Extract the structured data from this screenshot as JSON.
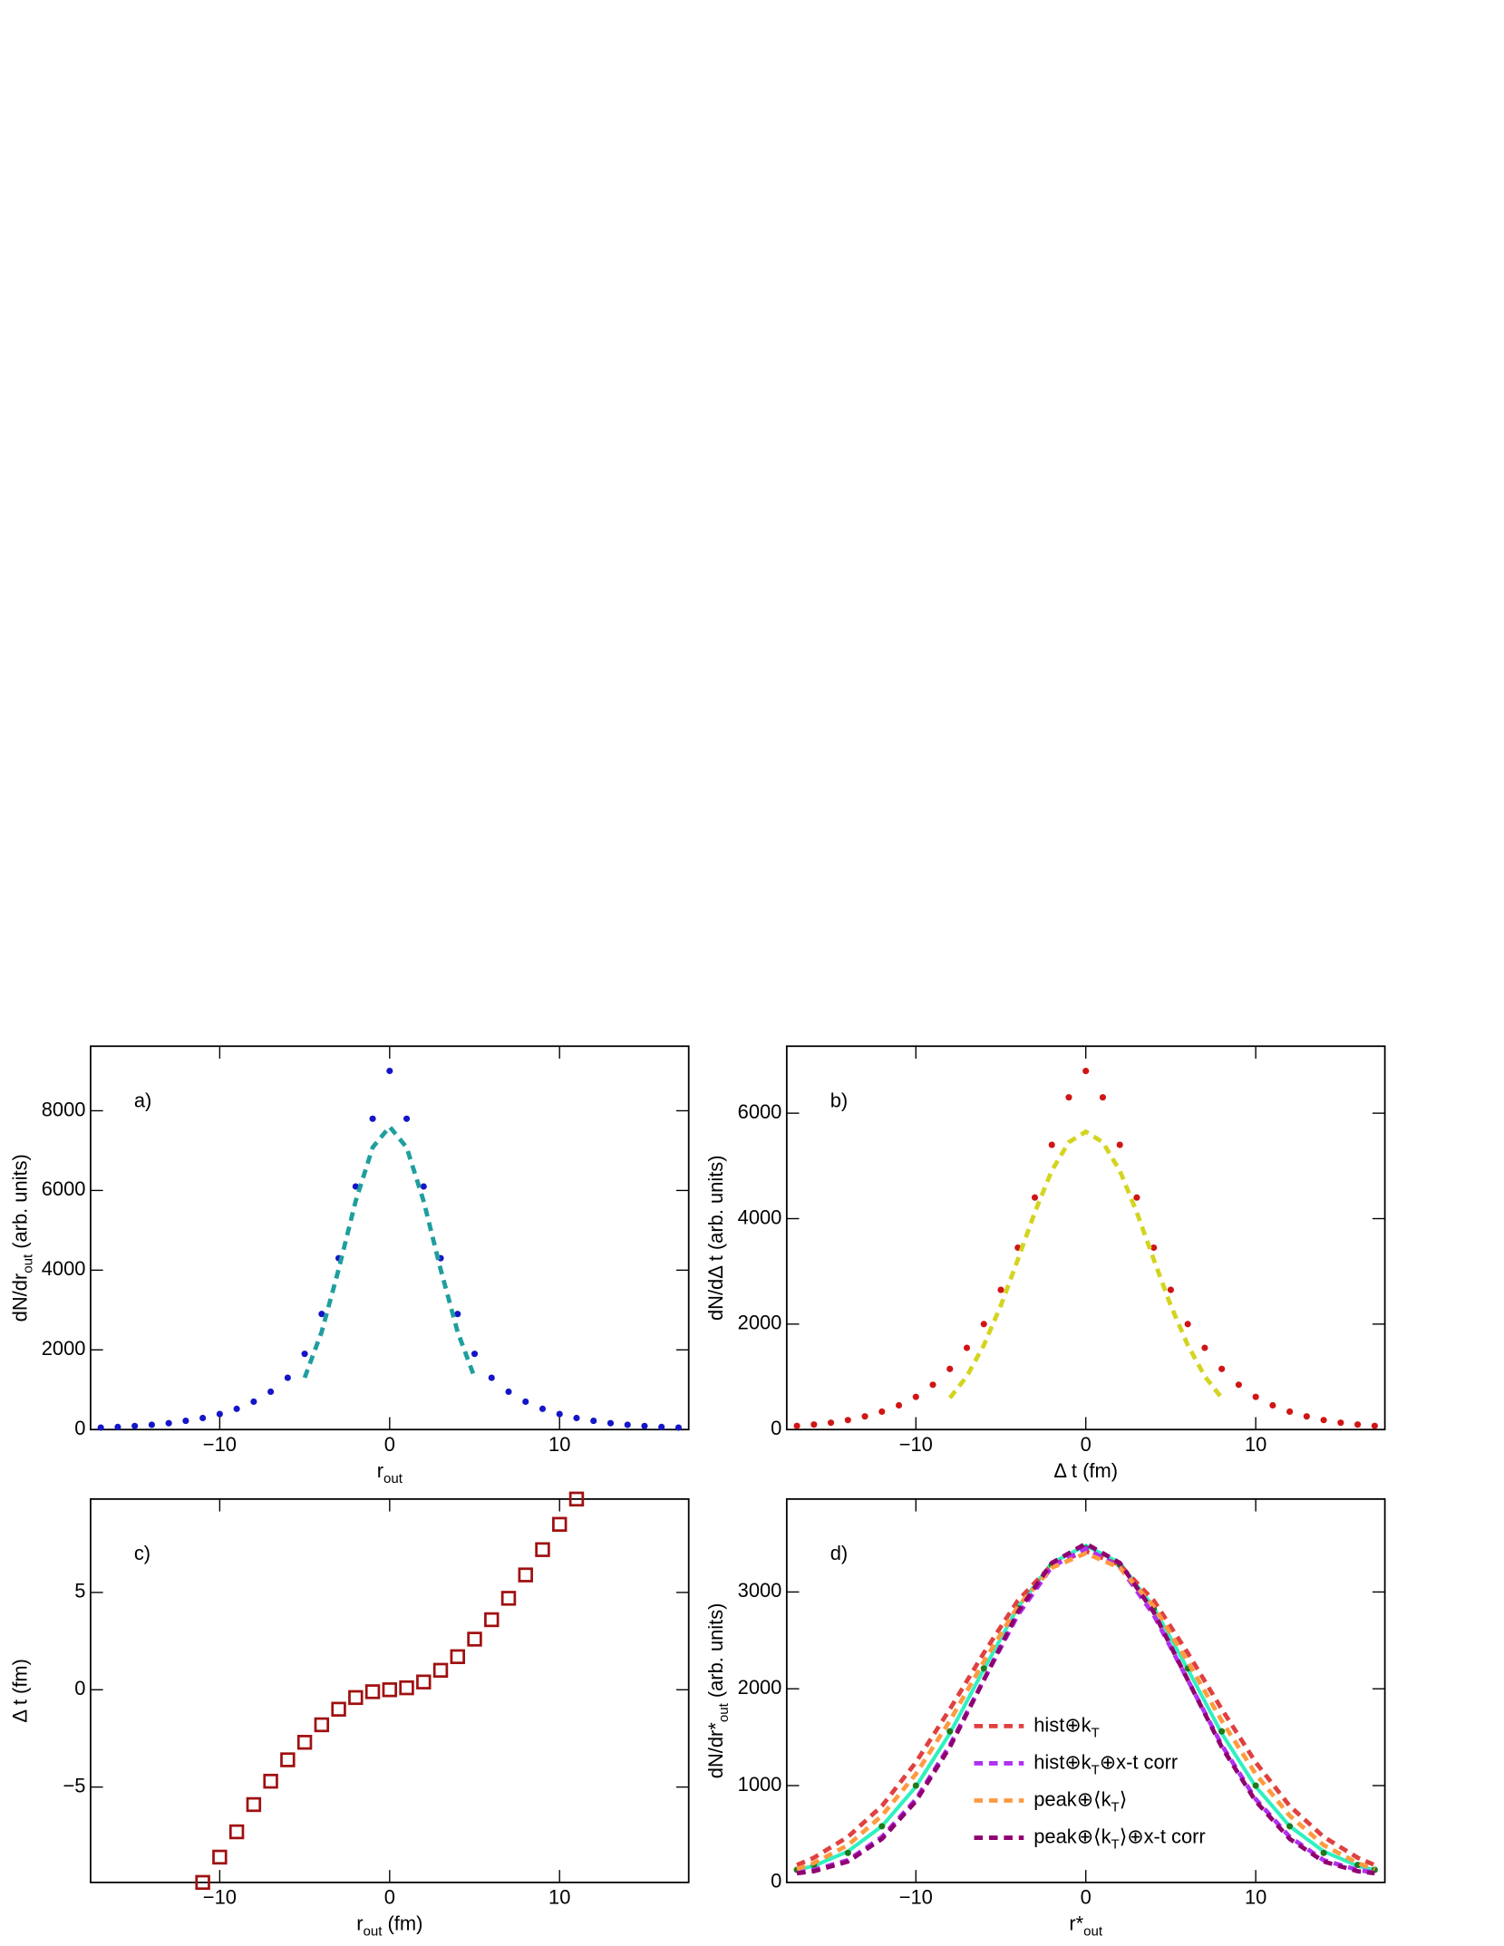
{
  "chart_data": [
    {
      "type": "line",
      "panel_label": "a)",
      "x_label": [
        "r",
        {
          "sub": "out"
        }
      ],
      "y_label": [
        "dN/dr",
        {
          "sub": "out"
        },
        " (arb. units)"
      ],
      "xlim": [
        -17.6,
        17.6
      ],
      "ylim": [
        0,
        9620
      ],
      "xticks": [
        {
          "value": -10,
          "label": "−10"
        },
        0,
        10
      ],
      "yticks": [
        0,
        2000,
        4000,
        6000,
        8000
      ],
      "x": [
        -17,
        -16,
        -15,
        -14,
        -13,
        -12,
        -11,
        -10,
        -9,
        -8,
        -7,
        -6,
        -5,
        -4,
        -3,
        -2,
        -1,
        0,
        1,
        2,
        3,
        4,
        5,
        6,
        7,
        8,
        9,
        10,
        11,
        12,
        13,
        14,
        15,
        16,
        17
      ],
      "series": [
        {
          "color": "#1515c8",
          "style": "points",
          "values": [
            50,
            65,
            90,
            120,
            160,
            220,
            290,
            390,
            520,
            700,
            950,
            1300,
            1900,
            2900,
            4300,
            6100,
            7800,
            9000,
            7800,
            6100,
            4300,
            2900,
            1900,
            1300,
            950,
            700,
            520,
            390,
            290,
            220,
            160,
            120,
            90,
            65,
            50
          ]
        },
        {
          "color": "#1f9e9e",
          "style": "dashed",
          "x": [
            -5,
            -4,
            -3,
            -2,
            -1,
            0,
            1,
            2,
            3,
            4,
            5
          ],
          "values": [
            1300,
            2450,
            4020,
            5730,
            7080,
            7600,
            7080,
            5730,
            4020,
            2450,
            1300
          ]
        }
      ]
    },
    {
      "type": "line",
      "panel_label": "b)",
      "x_label": [
        "Δ t (fm)"
      ],
      "y_label": [
        "dN/dΔ t (arb. units)"
      ],
      "xlim": [
        -17.6,
        17.6
      ],
      "ylim": [
        0,
        7270
      ],
      "xticks": [
        {
          "value": -10,
          "label": "−10"
        },
        0,
        10
      ],
      "yticks": [
        0,
        2000,
        4000,
        6000
      ],
      "x": [
        -17,
        -16,
        -15,
        -14,
        -13,
        -12,
        -11,
        -10,
        -9,
        -8,
        -7,
        -6,
        -5,
        -4,
        -3,
        -2,
        -1,
        0,
        1,
        2,
        3,
        4,
        5,
        6,
        7,
        8,
        9,
        10,
        11,
        12,
        13,
        14,
        15,
        16,
        17
      ],
      "series": [
        {
          "color": "#d01515",
          "style": "points",
          "values": [
            70,
            95,
            130,
            180,
            250,
            340,
            460,
            620,
            850,
            1150,
            1550,
            2000,
            2650,
            3450,
            4400,
            5400,
            6300,
            6800,
            6300,
            5400,
            4400,
            3450,
            2650,
            2000,
            1550,
            1150,
            850,
            620,
            460,
            340,
            250,
            180,
            130,
            95,
            70
          ]
        },
        {
          "color": "#d4d420",
          "style": "dashed",
          "x": [
            -8,
            -7,
            -6,
            -5,
            -4,
            -3,
            -2,
            -1,
            0,
            1,
            2,
            3,
            4,
            5,
            6,
            7,
            8
          ],
          "values": [
            600,
            1010,
            1600,
            2350,
            3220,
            4120,
            4910,
            5450,
            5650,
            5450,
            4910,
            4120,
            3220,
            2350,
            1600,
            1010,
            600
          ]
        }
      ]
    },
    {
      "type": "scatter",
      "panel_label": "c)",
      "x_label": [
        "r",
        {
          "sub": "out"
        },
        " (fm)"
      ],
      "y_label": [
        "Δ t (fm)"
      ],
      "xlim": [
        -17.6,
        17.6
      ],
      "ylim": [
        -9.9,
        9.8
      ],
      "xticks": [
        {
          "value": -10,
          "label": "−10"
        },
        0,
        10
      ],
      "yticks": [
        {
          "value": -5,
          "label": "−5"
        },
        0,
        5
      ],
      "x": [
        -11,
        -10,
        -9,
        -8,
        -7,
        -6,
        -5,
        -4,
        -3,
        -2,
        -1,
        0,
        1,
        2,
        3,
        4,
        5,
        6,
        7,
        8,
        9,
        10,
        11
      ],
      "series": [
        {
          "color": "#a01010",
          "style": "squares",
          "values": [
            -9.9,
            -8.6,
            -7.3,
            -5.9,
            -4.7,
            -3.6,
            -2.7,
            -1.8,
            -1.0,
            -0.4,
            -0.1,
            0,
            0.1,
            0.4,
            1.0,
            1.7,
            2.6,
            3.6,
            4.7,
            5.9,
            7.2,
            8.5,
            9.8
          ]
        }
      ]
    },
    {
      "type": "line",
      "panel_label": "d)",
      "x_label": [
        "r*",
        {
          "sub": "out"
        }
      ],
      "y_label": [
        "dN/dr*",
        {
          "sub": "out"
        },
        " (arb. units)"
      ],
      "xlim": [
        -17.6,
        17.6
      ],
      "ylim": [
        0,
        3960
      ],
      "xticks": [
        {
          "value": -10,
          "label": "−10"
        },
        0,
        10
      ],
      "yticks": [
        0,
        1000,
        2000,
        3000
      ],
      "legend": "lower center",
      "x": [
        -17,
        -16,
        -14,
        -12,
        -10,
        -8,
        -6,
        -4,
        -2,
        0,
        2,
        4,
        6,
        8,
        10,
        12,
        14,
        16,
        17
      ],
      "series": [
        {
          "color": "#e04040",
          "style": "dashed",
          "name": [
            "hist⊕k",
            {
              "sub": "T"
            }
          ],
          "values": [
            180,
            255,
            470,
            790,
            1240,
            1790,
            2370,
            2910,
            3280,
            3420,
            3280,
            2910,
            2370,
            1790,
            1240,
            790,
            470,
            255,
            180
          ]
        },
        {
          "color": "#b030f0",
          "style": "dashed",
          "name": [
            "hist⊕k",
            {
              "sub": "T"
            },
            "⊕x-t corr"
          ],
          "values": [
            100,
            130,
            230,
            470,
            860,
            1420,
            2090,
            2760,
            3260,
            3450,
            3260,
            2760,
            2090,
            1420,
            860,
            470,
            230,
            130,
            100
          ]
        },
        {
          "color": "#ff9a40",
          "style": "dashed",
          "name": [
            "peak⊕⟨k",
            {
              "sub": "T"
            },
            "⟩"
          ],
          "values": [
            137,
            200,
            385,
            690,
            1120,
            1670,
            2280,
            2850,
            3250,
            3400,
            3250,
            2850,
            2280,
            1670,
            1120,
            690,
            385,
            200,
            137
          ]
        },
        {
          "color": "#900070",
          "style": "dashed",
          "name": [
            "peak⊕⟨k",
            {
              "sub": "T"
            },
            "⟩⊕x-t corr"
          ],
          "values": [
            95,
            115,
            215,
            450,
            840,
            1400,
            2090,
            2790,
            3300,
            3500,
            3300,
            2790,
            2090,
            1400,
            840,
            450,
            215,
            115,
            95
          ]
        },
        {
          "color": "#30f0c0",
          "style": "solid",
          "values": [
            130,
            170,
            320,
            580,
            990,
            1540,
            2200,
            2840,
            3300,
            3480,
            3300,
            2840,
            2200,
            1540,
            990,
            580,
            320,
            170,
            130
          ]
        },
        {
          "color": "#1f7a1f",
          "style": "points",
          "values": [
            130,
            180,
            305,
            580,
            1000,
            1560,
            2210,
            2830,
            3280,
            3450,
            3280,
            2830,
            2210,
            1560,
            1000,
            580,
            305,
            180,
            130
          ]
        }
      ]
    }
  ]
}
